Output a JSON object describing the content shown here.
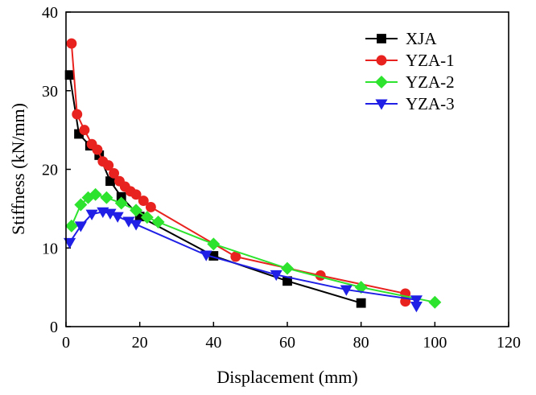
{
  "chart_data": {
    "type": "line",
    "title": "",
    "xlabel": "Displacement (mm)",
    "ylabel": "Stiffness (kN/mm)",
    "xlim": [
      0,
      120
    ],
    "ylim": [
      0,
      40
    ],
    "xticks": [
      0,
      20,
      40,
      60,
      80,
      100,
      120
    ],
    "yticks": [
      0,
      10,
      20,
      30,
      40
    ],
    "legend_position": "top-right",
    "series": [
      {
        "name": "XJA",
        "color": "#000000",
        "marker": "square",
        "x": [
          1,
          3.5,
          6.5,
          9,
          12,
          15,
          20,
          40,
          60,
          80
        ],
        "y": [
          32,
          24.5,
          23,
          21.8,
          18.5,
          16.5,
          14,
          9,
          5.8,
          3
        ]
      },
      {
        "name": "YZA-1",
        "color": "#e8231f",
        "marker": "circle",
        "x": [
          1.5,
          3,
          5,
          7,
          8.5,
          10,
          11.5,
          13,
          14.5,
          16,
          17.5,
          19,
          21,
          23,
          46,
          69,
          92,
          92
        ],
        "y": [
          36,
          27,
          25,
          23.2,
          22.5,
          21,
          20.5,
          19.5,
          18.5,
          17.8,
          17.2,
          16.8,
          16,
          15.2,
          8.9,
          6.5,
          4.2,
          3.2
        ]
      },
      {
        "name": "YZA-2",
        "color": "#2ee32e",
        "marker": "diamond",
        "x": [
          1.5,
          4,
          6,
          8,
          11,
          15,
          19,
          22,
          25,
          40,
          60,
          80,
          100
        ],
        "y": [
          12.8,
          15.5,
          16.4,
          16.8,
          16.4,
          15.7,
          14.8,
          13.9,
          13.3,
          10.5,
          7.4,
          5,
          3.1
        ]
      },
      {
        "name": "YZA-3",
        "color": "#1f1fe6",
        "marker": "triangle-down",
        "x": [
          1,
          4,
          7,
          10,
          12,
          14,
          17,
          19,
          38,
          57,
          76,
          95,
          95
        ],
        "y": [
          10.7,
          12.8,
          14.3,
          14.6,
          14.4,
          14,
          13.4,
          13,
          9.1,
          6.6,
          4.7,
          3.4,
          2.6
        ]
      }
    ]
  }
}
